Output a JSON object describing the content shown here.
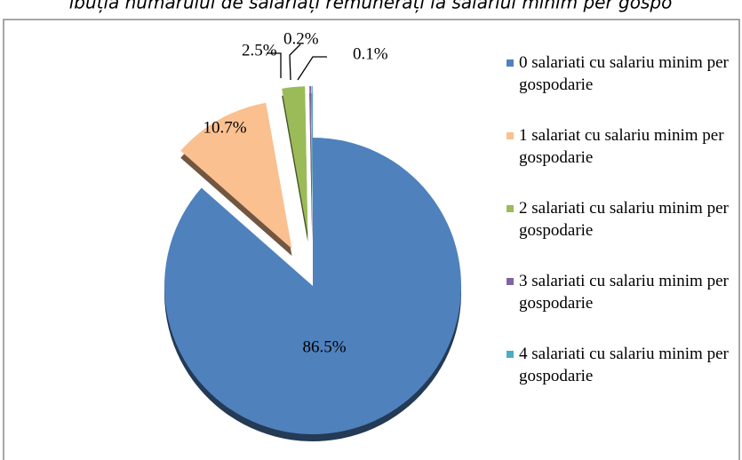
{
  "chart_data": {
    "type": "pie",
    "title": "ibuția numărului de salariați remunerați la salariul minim per gospo",
    "categories": [
      "0 salariati cu salariu minim per gospodarie",
      "1 salariat cu salariu minim per gospodarie",
      "2 salariati cu salariu minim per gospodarie",
      "3 salariati cu salariu minim per gospodarie",
      "4 salariati cu salariu minim per gospodarie"
    ],
    "values": [
      86.5,
      10.7,
      2.5,
      0.2,
      0.1
    ],
    "value_labels": [
      "86.5%",
      "10.7%",
      "2.5%",
      "0.2%",
      "0.1%"
    ],
    "colors": [
      "#4f81bd",
      "#fac090",
      "#9bbb59",
      "#8064a2",
      "#4bacc6"
    ],
    "legend": "right"
  }
}
